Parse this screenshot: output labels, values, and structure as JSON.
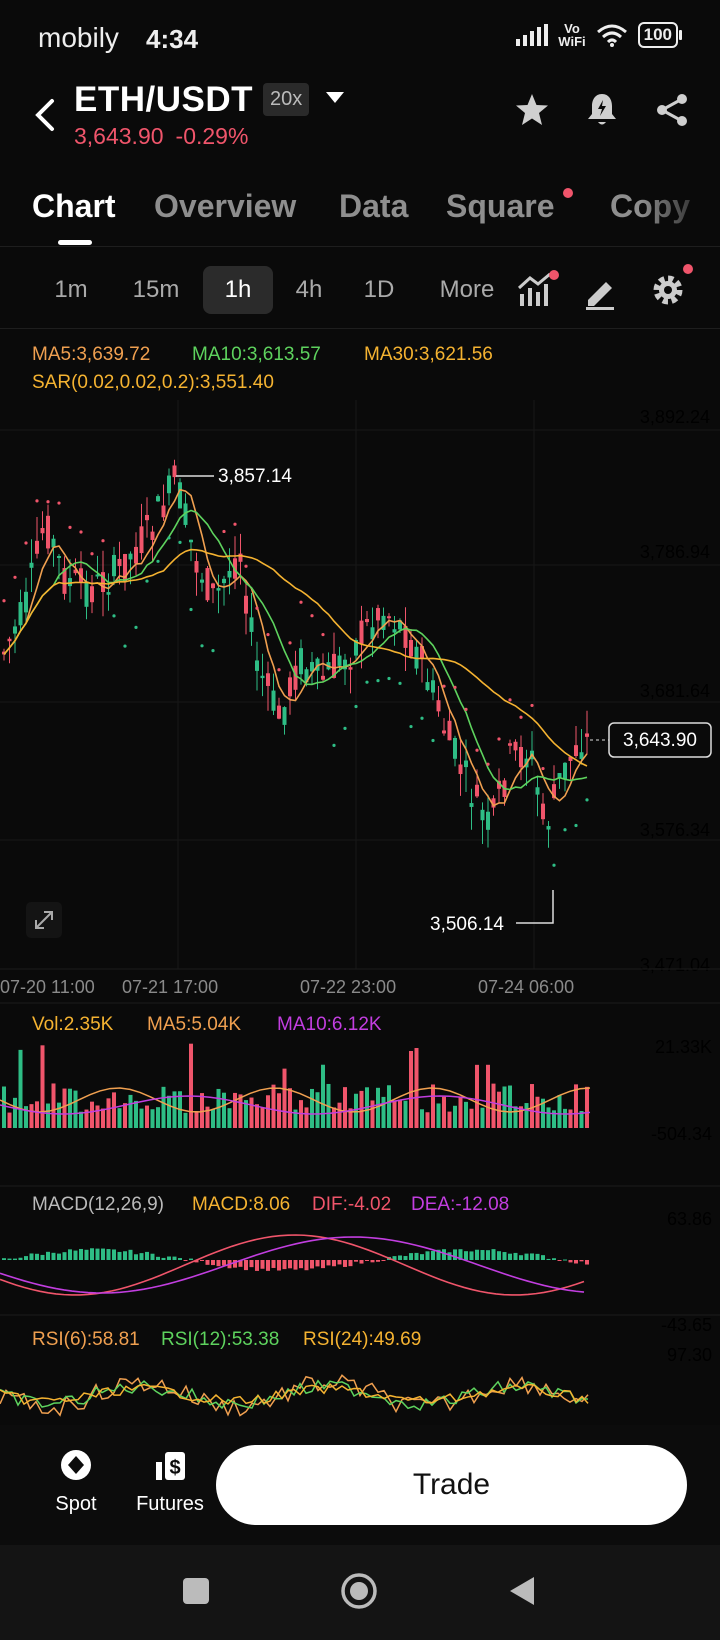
{
  "status": {
    "carrier": "mobily",
    "time": "4:34",
    "vowifi_top": "Vo",
    "vowifi_bottom": "WiFi",
    "battery": "100"
  },
  "header": {
    "pair": "ETH/USDT",
    "leverage": "20x",
    "price": "3,643.90",
    "change": "-0.29%"
  },
  "tabs": [
    {
      "label": "Chart",
      "active": true
    },
    {
      "label": "Overview"
    },
    {
      "label": "Data"
    },
    {
      "label": "Square",
      "dot": true
    },
    {
      "label": "Copy"
    }
  ],
  "intervals": [
    {
      "label": "1m"
    },
    {
      "label": "15m"
    },
    {
      "label": "1h",
      "active": true
    },
    {
      "label": "4h"
    },
    {
      "label": "1D"
    },
    {
      "label": "More"
    }
  ],
  "indicators": {
    "ma5": "MA5:3,639.72",
    "ma10": "MA10:3,613.57",
    "ma30": "MA30:3,621.56",
    "sar": "SAR(0.02,0.02,0.2):3,551.40"
  },
  "price_axis": [
    "3,892.24",
    "3,786.94",
    "3,681.64",
    "3,576.34",
    "3,471.04"
  ],
  "time_axis": [
    "07-20 11:00",
    "07-21 17:00",
    "07-22 23:00",
    "07-24 06:00"
  ],
  "annotations": {
    "high": "3,857.14",
    "low": "3,506.14",
    "last": "3,643.90"
  },
  "volume": {
    "vol": "Vol:2.35K",
    "ma5": "MA5:5.04K",
    "ma10": "MA10:6.12K",
    "axis_top": "21.33K",
    "axis_bottom": "-504.34"
  },
  "macd": {
    "label": "MACD(12,26,9)",
    "macd": "MACD:8.06",
    "dif": "DIF:-4.02",
    "dea": "DEA:-12.08",
    "axis_top": "63.86",
    "axis_bottom": "-43.65"
  },
  "rsi": {
    "rsi6": "RSI(6):58.81",
    "rsi12": "RSI(12):53.38",
    "rsi24": "RSI(24):49.69",
    "axis_top": "97.30"
  },
  "bottom": {
    "spot": "Spot",
    "futures": "Futures",
    "trade": "Trade"
  },
  "colors": {
    "up": "#2ebd85",
    "down": "#f0556b",
    "ma5": "#f0a050",
    "ma10": "#5ed35e",
    "ma30": "#f5b331",
    "vol_ma10": "#c23ee0"
  }
}
